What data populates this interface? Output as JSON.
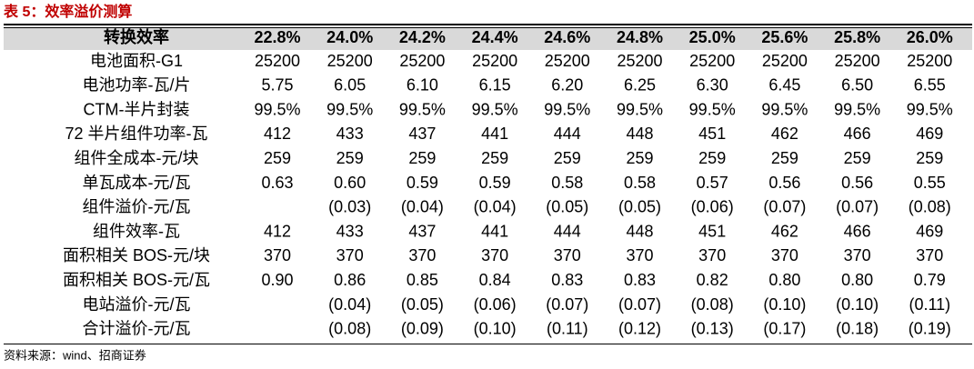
{
  "title": "表 5：效率溢价测算",
  "table": {
    "header": [
      "转换效率",
      "22.8%",
      "24.0%",
      "24.2%",
      "24.4%",
      "24.6%",
      "24.8%",
      "25.0%",
      "25.6%",
      "25.8%",
      "26.0%"
    ],
    "rows": [
      [
        "电池面积-G1",
        "25200",
        "25200",
        "25200",
        "25200",
        "25200",
        "25200",
        "25200",
        "25200",
        "25200",
        "25200"
      ],
      [
        "电池功率-瓦/片",
        "5.75",
        "6.05",
        "6.10",
        "6.15",
        "6.20",
        "6.25",
        "6.30",
        "6.45",
        "6.50",
        "6.55"
      ],
      [
        "CTM-半片封装",
        "99.5%",
        "99.5%",
        "99.5%",
        "99.5%",
        "99.5%",
        "99.5%",
        "99.5%",
        "99.5%",
        "99.5%",
        "99.5%"
      ],
      [
        "72 半片组件功率-瓦",
        "412",
        "433",
        "437",
        "441",
        "444",
        "448",
        "451",
        "462",
        "466",
        "469"
      ],
      [
        "组件全成本-元/块",
        "259",
        "259",
        "259",
        "259",
        "259",
        "259",
        "259",
        "259",
        "259",
        "259"
      ],
      [
        "单瓦成本-元/瓦",
        "0.63",
        "0.60",
        "0.59",
        "0.59",
        "0.58",
        "0.58",
        "0.57",
        "0.56",
        "0.56",
        "0.55"
      ],
      [
        "组件溢价-元/瓦",
        null,
        "(0.03)",
        "(0.04)",
        "(0.04)",
        "(0.05)",
        "(0.05)",
        "(0.06)",
        "(0.07)",
        "(0.07)",
        "(0.08)"
      ],
      [
        "组件效率-瓦",
        "412",
        "433",
        "437",
        "441",
        "444",
        "448",
        "451",
        "462",
        "466",
        "469"
      ],
      [
        "面积相关 BOS-元/块",
        "370",
        "370",
        "370",
        "370",
        "370",
        "370",
        "370",
        "370",
        "370",
        "370"
      ],
      [
        "面积相关 BOS-元/瓦",
        "0.90",
        "0.86",
        "0.85",
        "0.84",
        "0.83",
        "0.83",
        "0.82",
        "0.80",
        "0.80",
        "0.79"
      ],
      [
        "电站溢价-元/瓦",
        null,
        "(0.04)",
        "(0.05)",
        "(0.06)",
        "(0.07)",
        "(0.07)",
        "(0.08)",
        "(0.10)",
        "(0.10)",
        "(0.11)"
      ],
      [
        "合计溢价-元/瓦",
        null,
        "(0.08)",
        "(0.09)",
        "(0.10)",
        "(0.11)",
        "(0.12)",
        "(0.13)",
        "(0.17)",
        "(0.18)",
        "(0.19)"
      ]
    ]
  },
  "source": "资料来源：wind、招商证券"
}
